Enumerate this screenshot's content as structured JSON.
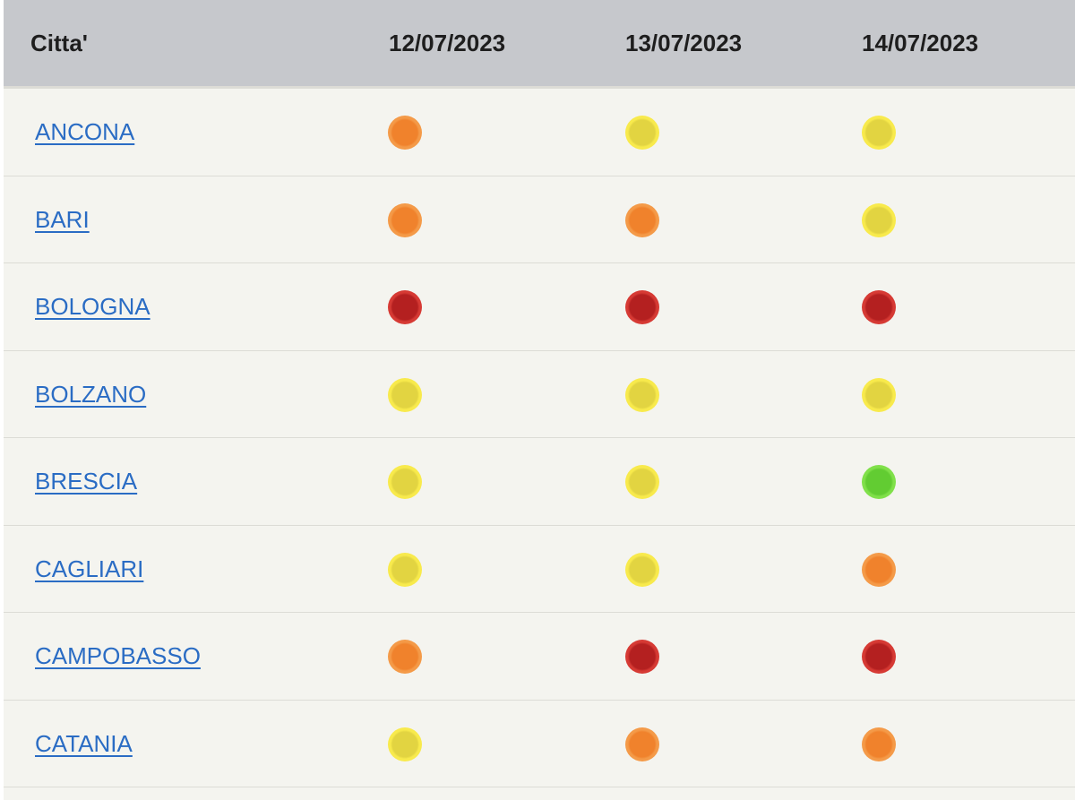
{
  "table": {
    "headers": [
      "Citta'",
      "12/07/2023",
      "13/07/2023",
      "14/07/2023"
    ],
    "levels_legend": {
      "yellow": "#e2d441",
      "orange": "#f0822c",
      "red": "#b42020",
      "green": "#62cc32"
    },
    "rows": [
      {
        "city": "ANCONA",
        "levels": [
          "orange",
          "yellow",
          "yellow"
        ]
      },
      {
        "city": "BARI",
        "levels": [
          "orange",
          "orange",
          "yellow"
        ]
      },
      {
        "city": "BOLOGNA",
        "levels": [
          "red",
          "red",
          "red"
        ]
      },
      {
        "city": "BOLZANO",
        "levels": [
          "yellow",
          "yellow",
          "yellow"
        ]
      },
      {
        "city": "BRESCIA",
        "levels": [
          "yellow",
          "yellow",
          "green"
        ]
      },
      {
        "city": "CAGLIARI",
        "levels": [
          "yellow",
          "yellow",
          "orange"
        ]
      },
      {
        "city": "CAMPOBASSO",
        "levels": [
          "orange",
          "red",
          "red"
        ]
      },
      {
        "city": "CATANIA",
        "levels": [
          "yellow",
          "orange",
          "orange"
        ]
      }
    ]
  }
}
